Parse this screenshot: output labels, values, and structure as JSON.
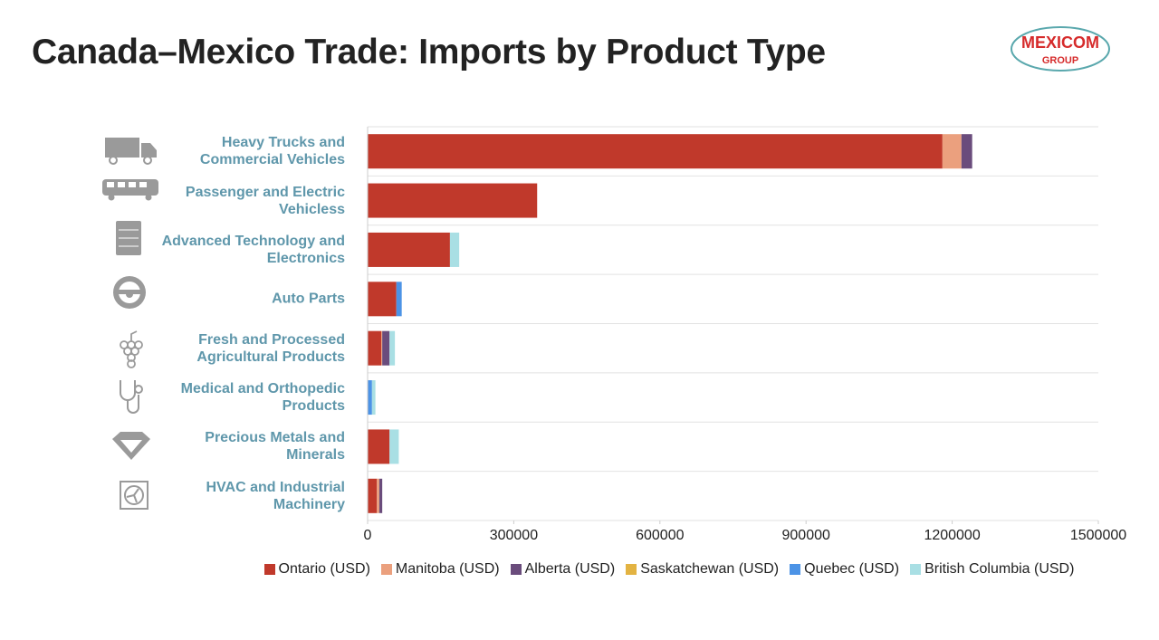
{
  "chart_data": {
    "type": "stacked_barh",
    "title": "Canada–Mexico Trade: Imports by Product Type",
    "categories": [
      "Heavy Trucks and Commercial Vehicles",
      "Passenger and Electric Vehicless",
      "Advanced Technology and Electronics",
      "Auto Parts",
      "Fresh and Processed Agricultural Products",
      "Medical and Orthopedic Products",
      "Precious Metals and Minerals",
      "HVAC and Industrial Machinery"
    ],
    "series": [
      {
        "name": "Ontario (USD)",
        "color": "#c0392b",
        "values": [
          1180000,
          348000,
          169000,
          59000,
          28000,
          0,
          45000,
          19000
        ]
      },
      {
        "name": "Manitoba (USD)",
        "color": "#eba07e",
        "values": [
          39000,
          0,
          0,
          0,
          2000,
          0,
          0,
          5000
        ]
      },
      {
        "name": "Alberta (USD)",
        "color": "#6a4c7c",
        "values": [
          22000,
          0,
          0,
          0,
          15000,
          0,
          0,
          6000
        ]
      },
      {
        "name": "Saskatchewan (USD)",
        "color": "#e3b342",
        "values": [
          0,
          0,
          0,
          0,
          0,
          0,
          0,
          0
        ]
      },
      {
        "name": "Quebec (USD)",
        "color": "#4c93e6",
        "values": [
          0,
          0,
          0,
          11000,
          0,
          9000,
          0,
          0
        ]
      },
      {
        "name": "British Columbia (USD)",
        "color": "#a9dfe4",
        "values": [
          0,
          0,
          19000,
          0,
          11000,
          7000,
          19000,
          0
        ]
      }
    ],
    "xlim": [
      0,
      1500000
    ],
    "xticks": [
      0,
      300000,
      600000,
      900000,
      1200000,
      1500000
    ],
    "legend": "bottom"
  },
  "logo": {
    "line1": "MEXICOM",
    "line2": "GROUP"
  }
}
